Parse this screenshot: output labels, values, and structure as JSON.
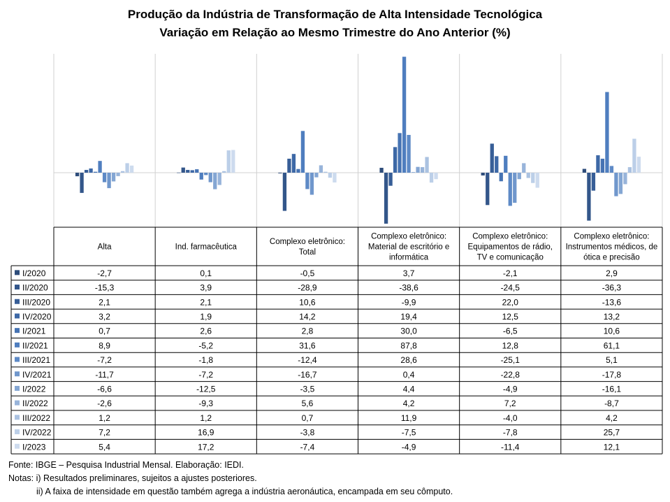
{
  "title": "Produção da Indústria de Transformação de Alta Intensidade Tecnológica",
  "subtitle": "Variação em Relação ao Mesmo Trimestre do Ano Anterior (%)",
  "footer": {
    "source": "Fonte: IBGE – Pesquisa Industrial Mensal. Elaboração: IEDI.",
    "note1": "Notas: i) Resultados preliminares, sujeitos a ajustes posteriores.",
    "note2": "ii) A faixa de intensidade em questão também agrega a indústria aeronáutica, encampada em seu cômputo."
  },
  "chart_data": {
    "type": "bar",
    "title": "Produção da Indústria de Transformação de Alta Intensidade Tecnológica",
    "subtitle": "Variação em Relação ao Mesmo Trimestre do Ano Anterior (%)",
    "categories": [
      [
        "Alta"
      ],
      [
        "Ind. farmacêutica"
      ],
      [
        "Complexo eletrônico:",
        "Total"
      ],
      [
        "Complexo eletrônico:",
        "Material de escritório e",
        "informática"
      ],
      [
        "Complexo eletrônico:",
        "Equipamentos de rádio,",
        "TV e comunicação"
      ],
      [
        "Complexo eletrônico:",
        "Instrumentos médicos, de",
        "ótica e precisão"
      ]
    ],
    "ylim": [
      -40,
      90
    ],
    "grid": false,
    "legend": "data-table",
    "series": [
      {
        "name": "I/2020",
        "color": "#2e4d7b",
        "values": [
          -2.7,
          0.1,
          -0.5,
          3.7,
          -2.1,
          2.9
        ],
        "labels": [
          "-2,7",
          "0,1",
          "-0,5",
          "3,7",
          "-2,1",
          "2,9"
        ]
      },
      {
        "name": "II/2020",
        "color": "#33568a",
        "values": [
          -15.3,
          3.9,
          -28.9,
          -38.6,
          -24.5,
          -36.3
        ],
        "labels": [
          "-15,3",
          "3,9",
          "-28,9",
          "-38,6",
          "-24,5",
          "-36,3"
        ]
      },
      {
        "name": "III/2020",
        "color": "#375e97",
        "values": [
          2.1,
          2.1,
          10.6,
          -9.9,
          22.0,
          -13.6
        ],
        "labels": [
          "2,1",
          "2,1",
          "10,6",
          "-9,9",
          "22,0",
          "-13,6"
        ]
      },
      {
        "name": "IV/2020",
        "color": "#3d68a6",
        "values": [
          3.2,
          1.9,
          14.2,
          19.4,
          12.5,
          13.2
        ],
        "labels": [
          "3,2",
          "1,9",
          "14,2",
          "19,4",
          "12,5",
          "13,2"
        ]
      },
      {
        "name": "I/2021",
        "color": "#4673b3",
        "values": [
          0.7,
          2.6,
          2.8,
          30.0,
          -6.5,
          10.6
        ],
        "labels": [
          "0,7",
          "2,6",
          "2,8",
          "30,0",
          "-6,5",
          "10,6"
        ]
      },
      {
        "name": "II/2021",
        "color": "#4f7ebf",
        "values": [
          8.9,
          -5.2,
          31.6,
          87.8,
          12.8,
          61.1
        ],
        "labels": [
          "8,9",
          "-5,2",
          "31,6",
          "87,8",
          "12,8",
          "61,1"
        ]
      },
      {
        "name": "III/2021",
        "color": "#5e8ac6",
        "values": [
          -7.2,
          -1.8,
          -12.4,
          28.6,
          -25.1,
          5.1
        ],
        "labels": [
          "-7,2",
          "-1,8",
          "-12,4",
          "28,6",
          "-25,1",
          "5,1"
        ]
      },
      {
        "name": "IV/2021",
        "color": "#7097cc",
        "values": [
          -11.7,
          -7.2,
          -16.7,
          0.4,
          -22.8,
          -17.8
        ],
        "labels": [
          "-11,7",
          "-7,2",
          "-16,7",
          "0,4",
          "-22,8",
          "-17,8"
        ]
      },
      {
        "name": "I/2022",
        "color": "#84a6d3",
        "values": [
          -6.6,
          -12.5,
          -3.5,
          4.4,
          -4.9,
          -16.1
        ],
        "labels": [
          "-6,6",
          "-12,5",
          "-3,5",
          "4,4",
          "-4,9",
          "-16,1"
        ]
      },
      {
        "name": "II/2022",
        "color": "#98b4da",
        "values": [
          -2.6,
          -9.3,
          5.6,
          4.2,
          7.2,
          -8.7
        ],
        "labels": [
          "-2,6",
          "-9,3",
          "5,6",
          "4,2",
          "7,2",
          "-8,7"
        ]
      },
      {
        "name": "III/2022",
        "color": "#abc2e1",
        "values": [
          1.2,
          1.2,
          0.7,
          11.9,
          -4.0,
          4.2
        ],
        "labels": [
          "1,2",
          "1,2",
          "0,7",
          "11,9",
          "-4,0",
          "4,2"
        ]
      },
      {
        "name": "IV/2022",
        "color": "#bccfe8",
        "values": [
          7.2,
          16.9,
          -3.8,
          -7.5,
          -7.8,
          25.7
        ],
        "labels": [
          "7,2",
          "16,9",
          "-3,8",
          "-7,5",
          "-7,8",
          "25,7"
        ]
      },
      {
        "name": "I/2023",
        "color": "#cddbee",
        "values": [
          5.4,
          17.2,
          -7.4,
          -4.9,
          -11.4,
          12.1
        ],
        "labels": [
          "5,4",
          "17,2",
          "-7,4",
          "-4,9",
          "-11,4",
          "12,1"
        ]
      }
    ]
  }
}
